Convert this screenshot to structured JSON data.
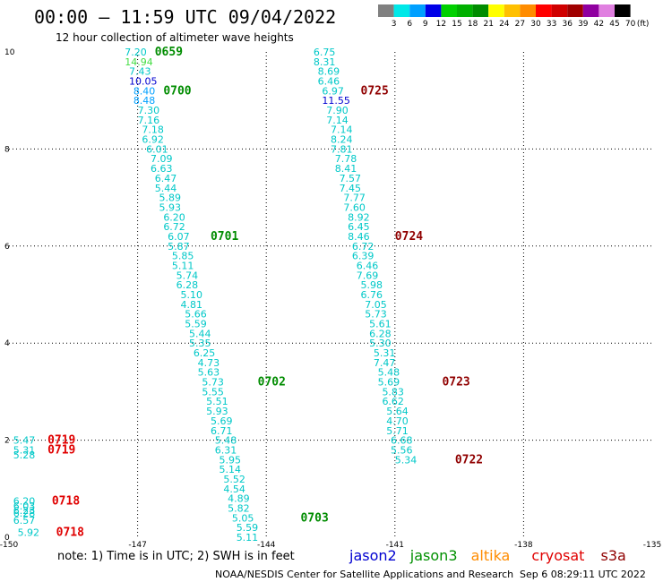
{
  "title": "00:00 – 11:59 UTC 09/04/2022",
  "subtitle": "12 hour collection of altimeter wave heights",
  "color_scale": {
    "labels": [
      "3",
      "6",
      "9",
      "12",
      "15",
      "18",
      "21",
      "24",
      "27",
      "30",
      "33",
      "36",
      "39",
      "42",
      "45",
      "70"
    ],
    "unit": "(ft)",
    "colors": [
      "#808080",
      "#00e8e8",
      "#00a0ff",
      "#0000e8",
      "#00d000",
      "#00b000",
      "#008c00",
      "#ffff00",
      "#ffc000",
      "#ff8c00",
      "#ff0000",
      "#d00000",
      "#a00000",
      "#9000a0",
      "#e080e0",
      "#000000"
    ]
  },
  "note": "note:  1) Time is in UTC;  2) SWH is in feet",
  "satellites": [
    {
      "name": "jason2",
      "color": "#0000d0"
    },
    {
      "name": "jason3",
      "color": "#009000"
    },
    {
      "name": "altika",
      "color": "#ff8c00"
    },
    {
      "name": "cryosat",
      "color": "#e00000"
    },
    {
      "name": "s3a",
      "color": "#900000"
    }
  ],
  "credit": "NOAA/NESDIS Center for Satellite Applications and Research",
  "timestamp": "Sep  6 08:29:11 UTC 2022",
  "chart_data": {
    "type": "scatter",
    "title": "00:00 – 11:59 UTC 09/04/2022",
    "subtitle": "12 hour collection of altimeter wave heights",
    "xlabel": "",
    "ylabel": "",
    "xlim": [
      -150,
      -135
    ],
    "ylim": [
      0,
      10
    ],
    "x_ticks": [
      "-150",
      "-147",
      "-144",
      "-141",
      "-138",
      "-135"
    ],
    "y_ticks": [
      "0",
      "2",
      "4",
      "6",
      "8",
      "10"
    ],
    "grid": true,
    "unit": "ft",
    "tracks": [
      {
        "satellite": "jason3",
        "points": [
          {
            "x": -147.3,
            "y": 10.0,
            "v": "7.20",
            "c": "#00c8c8"
          },
          {
            "x": -147.3,
            "y": 9.8,
            "v": "14.94",
            "c": "#44dd44"
          },
          {
            "x": -147.2,
            "y": 9.6,
            "v": "7.43",
            "c": "#00c8c8"
          },
          {
            "x": -147.2,
            "y": 9.4,
            "v": "10.05",
            "c": "#0000d0"
          },
          {
            "x": -147.1,
            "y": 9.2,
            "v": "8.40",
            "c": "#00a0ff"
          },
          {
            "x": -147.1,
            "y": 9.0,
            "v": "8.48",
            "c": "#00a0ff"
          },
          {
            "x": -147.0,
            "y": 8.8,
            "v": "7.30",
            "c": "#00c8c8"
          },
          {
            "x": -147.0,
            "y": 8.6,
            "v": "7.16",
            "c": "#00c8c8"
          },
          {
            "x": -146.9,
            "y": 8.4,
            "v": "7.18",
            "c": "#00c8c8"
          },
          {
            "x": -146.9,
            "y": 8.2,
            "v": "6.92",
            "c": "#00c8c8"
          },
          {
            "x": -146.8,
            "y": 8.0,
            "v": "6.01",
            "c": "#00c8c8"
          },
          {
            "x": -146.7,
            "y": 7.8,
            "v": "7.09",
            "c": "#00c8c8"
          },
          {
            "x": -146.7,
            "y": 7.6,
            "v": "6.63",
            "c": "#00c8c8"
          },
          {
            "x": -146.6,
            "y": 7.4,
            "v": "6.47",
            "c": "#00c8c8"
          },
          {
            "x": -146.6,
            "y": 7.2,
            "v": "5.44",
            "c": "#00c8c8"
          },
          {
            "x": -146.5,
            "y": 7.0,
            "v": "5.89",
            "c": "#00c8c8"
          },
          {
            "x": -146.5,
            "y": 6.8,
            "v": "5.93",
            "c": "#00c8c8"
          },
          {
            "x": -146.4,
            "y": 6.6,
            "v": "6.20",
            "c": "#00c8c8"
          },
          {
            "x": -146.4,
            "y": 6.4,
            "v": "6.72",
            "c": "#00c8c8"
          },
          {
            "x": -146.3,
            "y": 6.2,
            "v": "6.07",
            "c": "#00c8c8"
          },
          {
            "x": -146.3,
            "y": 6.0,
            "v": "5.87",
            "c": "#00c8c8"
          },
          {
            "x": -146.2,
            "y": 5.8,
            "v": "5.85",
            "c": "#00c8c8"
          },
          {
            "x": -146.2,
            "y": 5.6,
            "v": "5.11",
            "c": "#00c8c8"
          },
          {
            "x": -146.1,
            "y": 5.4,
            "v": "5.74",
            "c": "#00c8c8"
          },
          {
            "x": -146.1,
            "y": 5.2,
            "v": "6.28",
            "c": "#00c8c8"
          },
          {
            "x": -146.0,
            "y": 5.0,
            "v": "5.10",
            "c": "#00c8c8"
          },
          {
            "x": -146.0,
            "y": 4.8,
            "v": "4.81",
            "c": "#00c8c8"
          },
          {
            "x": -145.9,
            "y": 4.6,
            "v": "5.66",
            "c": "#00c8c8"
          },
          {
            "x": -145.9,
            "y": 4.4,
            "v": "5.59",
            "c": "#00c8c8"
          },
          {
            "x": -145.8,
            "y": 4.2,
            "v": "5.44",
            "c": "#00c8c8"
          },
          {
            "x": -145.8,
            "y": 4.0,
            "v": "5.35",
            "c": "#00c8c8"
          },
          {
            "x": -145.7,
            "y": 3.8,
            "v": "6.25",
            "c": "#00c8c8"
          },
          {
            "x": -145.6,
            "y": 3.6,
            "v": "4.73",
            "c": "#00c8c8"
          },
          {
            "x": -145.6,
            "y": 3.4,
            "v": "5.63",
            "c": "#00c8c8"
          },
          {
            "x": -145.5,
            "y": 3.2,
            "v": "5.73",
            "c": "#00c8c8"
          },
          {
            "x": -145.5,
            "y": 3.0,
            "v": "5.55",
            "c": "#00c8c8"
          },
          {
            "x": -145.4,
            "y": 2.8,
            "v": "5.51",
            "c": "#00c8c8"
          },
          {
            "x": -145.4,
            "y": 2.6,
            "v": "5.93",
            "c": "#00c8c8"
          },
          {
            "x": -145.3,
            "y": 2.4,
            "v": "5.69",
            "c": "#00c8c8"
          },
          {
            "x": -145.3,
            "y": 2.2,
            "v": "6.71",
            "c": "#00c8c8"
          },
          {
            "x": -145.2,
            "y": 2.0,
            "v": "5.48",
            "c": "#00c8c8"
          },
          {
            "x": -145.2,
            "y": 1.8,
            "v": "6.31",
            "c": "#00c8c8"
          },
          {
            "x": -145.1,
            "y": 1.6,
            "v": "5.95",
            "c": "#00c8c8"
          },
          {
            "x": -145.1,
            "y": 1.4,
            "v": "5.14",
            "c": "#00c8c8"
          },
          {
            "x": -145.0,
            "y": 1.2,
            "v": "5.52",
            "c": "#00c8c8"
          },
          {
            "x": -145.0,
            "y": 1.0,
            "v": "4.54",
            "c": "#00c8c8"
          },
          {
            "x": -144.9,
            "y": 0.8,
            "v": "4.89",
            "c": "#00c8c8"
          },
          {
            "x": -144.9,
            "y": 0.6,
            "v": "5.82",
            "c": "#00c8c8"
          },
          {
            "x": -144.8,
            "y": 0.4,
            "v": "5.05",
            "c": "#00c8c8"
          },
          {
            "x": -144.7,
            "y": 0.2,
            "v": "5.59",
            "c": "#00c8c8"
          },
          {
            "x": -144.7,
            "y": 0.0,
            "v": "5.11",
            "c": "#00c8c8"
          }
        ],
        "times": [
          {
            "x": -146.6,
            "y": 10.0,
            "t": "0659",
            "c": "#008c00"
          },
          {
            "x": -146.4,
            "y": 9.2,
            "t": "0700",
            "c": "#008c00"
          },
          {
            "x": -145.3,
            "y": 6.2,
            "t": "0701",
            "c": "#008c00"
          },
          {
            "x": -144.2,
            "y": 3.2,
            "t": "0702",
            "c": "#008c00"
          },
          {
            "x": -143.2,
            "y": 0.4,
            "t": "0703",
            "c": "#008c00"
          }
        ]
      },
      {
        "satellite": "s3a",
        "points": [
          {
            "x": -142.9,
            "y": 10.0,
            "v": "6.75",
            "c": "#00c8c8"
          },
          {
            "x": -142.9,
            "y": 9.8,
            "v": "8.31",
            "c": "#00c8c8"
          },
          {
            "x": -142.8,
            "y": 9.6,
            "v": "8.69",
            "c": "#00c8c8"
          },
          {
            "x": -142.8,
            "y": 9.4,
            "v": "6.46",
            "c": "#00c8c8"
          },
          {
            "x": -142.7,
            "y": 9.2,
            "v": "6.97",
            "c": "#00c8c8"
          },
          {
            "x": -142.7,
            "y": 9.0,
            "v": "11.55",
            "c": "#0000d0"
          },
          {
            "x": -142.6,
            "y": 8.8,
            "v": "7.90",
            "c": "#00c8c8"
          },
          {
            "x": -142.6,
            "y": 8.6,
            "v": "7.14",
            "c": "#00c8c8"
          },
          {
            "x": -142.5,
            "y": 8.4,
            "v": "7.14",
            "c": "#00c8c8"
          },
          {
            "x": -142.5,
            "y": 8.2,
            "v": "8.24",
            "c": "#00c8c8"
          },
          {
            "x": -142.5,
            "y": 8.0,
            "v": "7.81",
            "c": "#00c8c8"
          },
          {
            "x": -142.4,
            "y": 7.8,
            "v": "7.78",
            "c": "#00c8c8"
          },
          {
            "x": -142.4,
            "y": 7.6,
            "v": "8.41",
            "c": "#00c8c8"
          },
          {
            "x": -142.3,
            "y": 7.4,
            "v": "7.57",
            "c": "#00c8c8"
          },
          {
            "x": -142.3,
            "y": 7.2,
            "v": "7.45",
            "c": "#00c8c8"
          },
          {
            "x": -142.2,
            "y": 7.0,
            "v": "7.77",
            "c": "#00c8c8"
          },
          {
            "x": -142.2,
            "y": 6.8,
            "v": "7.60",
            "c": "#00c8c8"
          },
          {
            "x": -142.1,
            "y": 6.6,
            "v": "8.92",
            "c": "#00c8c8"
          },
          {
            "x": -142.1,
            "y": 6.4,
            "v": "6.45",
            "c": "#00c8c8"
          },
          {
            "x": -142.1,
            "y": 6.2,
            "v": "8.46",
            "c": "#00c8c8"
          },
          {
            "x": -142.0,
            "y": 6.0,
            "v": "6.72",
            "c": "#00c8c8"
          },
          {
            "x": -142.0,
            "y": 5.8,
            "v": "6.39",
            "c": "#00c8c8"
          },
          {
            "x": -141.9,
            "y": 5.6,
            "v": "6.46",
            "c": "#00c8c8"
          },
          {
            "x": -141.9,
            "y": 5.4,
            "v": "7.69",
            "c": "#00c8c8"
          },
          {
            "x": -141.8,
            "y": 5.2,
            "v": "5.98",
            "c": "#00c8c8"
          },
          {
            "x": -141.8,
            "y": 5.0,
            "v": "6.76",
            "c": "#00c8c8"
          },
          {
            "x": -141.7,
            "y": 4.8,
            "v": "7.05",
            "c": "#00c8c8"
          },
          {
            "x": -141.7,
            "y": 4.6,
            "v": "5.73",
            "c": "#00c8c8"
          },
          {
            "x": -141.6,
            "y": 4.4,
            "v": "5.61",
            "c": "#00c8c8"
          },
          {
            "x": -141.6,
            "y": 4.2,
            "v": "6.28",
            "c": "#00c8c8"
          },
          {
            "x": -141.6,
            "y": 4.0,
            "v": "5.30",
            "c": "#00c8c8"
          },
          {
            "x": -141.5,
            "y": 3.8,
            "v": "5.31",
            "c": "#00c8c8"
          },
          {
            "x": -141.5,
            "y": 3.6,
            "v": "7.47",
            "c": "#00c8c8"
          },
          {
            "x": -141.4,
            "y": 3.4,
            "v": "5.48",
            "c": "#00c8c8"
          },
          {
            "x": -141.4,
            "y": 3.2,
            "v": "5.69",
            "c": "#00c8c8"
          },
          {
            "x": -141.3,
            "y": 3.0,
            "v": "5.83",
            "c": "#00c8c8"
          },
          {
            "x": -141.3,
            "y": 2.8,
            "v": "6.62",
            "c": "#00c8c8"
          },
          {
            "x": -141.2,
            "y": 2.6,
            "v": "5.64",
            "c": "#00c8c8"
          },
          {
            "x": -141.2,
            "y": 2.4,
            "v": "4.70",
            "c": "#00c8c8"
          },
          {
            "x": -141.2,
            "y": 2.2,
            "v": "5.71",
            "c": "#00c8c8"
          },
          {
            "x": -141.1,
            "y": 2.0,
            "v": "6.68",
            "c": "#00c8c8"
          },
          {
            "x": -141.1,
            "y": 1.8,
            "v": "5.56",
            "c": "#00c8c8"
          },
          {
            "x": -141.0,
            "y": 1.6,
            "v": "5.34",
            "c": "#00c8c8"
          }
        ],
        "times": [
          {
            "x": -141.8,
            "y": 9.2,
            "t": "0725",
            "c": "#900000"
          },
          {
            "x": -141.0,
            "y": 6.2,
            "t": "0724",
            "c": "#900000"
          },
          {
            "x": -139.9,
            "y": 3.2,
            "t": "0723",
            "c": "#900000"
          },
          {
            "x": -139.6,
            "y": 1.6,
            "t": "0722",
            "c": "#900000"
          }
        ]
      },
      {
        "satellite": "cryosat",
        "points": [
          {
            "x": -149.9,
            "y": 2.0,
            "v": "5.47",
            "c": "#00c8c8"
          },
          {
            "x": -149.9,
            "y": 1.8,
            "v": "5.31",
            "c": "#00c8c8"
          },
          {
            "x": -149.9,
            "y": 1.7,
            "v": "5.28",
            "c": "#00c8c8"
          },
          {
            "x": -149.9,
            "y": 0.75,
            "v": "6.20",
            "c": "#00c8c8"
          },
          {
            "x": -149.9,
            "y": 0.65,
            "v": "6.03",
            "c": "#00c8c8"
          },
          {
            "x": -149.9,
            "y": 0.55,
            "v": "6.23",
            "c": "#00c8c8"
          },
          {
            "x": -149.9,
            "y": 0.5,
            "v": "6.28",
            "c": "#00c8c8"
          },
          {
            "x": -149.9,
            "y": 0.35,
            "v": "6.57",
            "c": "#00c8c8"
          },
          {
            "x": -149.8,
            "y": 0.1,
            "v": "5.92",
            "c": "#00c8c8"
          }
        ],
        "times": [
          {
            "x": -149.1,
            "y": 2.0,
            "t": "0719",
            "c": "#e00000"
          },
          {
            "x": -149.1,
            "y": 1.8,
            "t": "0719",
            "c": "#e00000"
          },
          {
            "x": -149.0,
            "y": 0.75,
            "t": "0718",
            "c": "#e00000"
          },
          {
            "x": -148.9,
            "y": 0.1,
            "t": "0718",
            "c": "#e00000"
          }
        ]
      }
    ]
  }
}
